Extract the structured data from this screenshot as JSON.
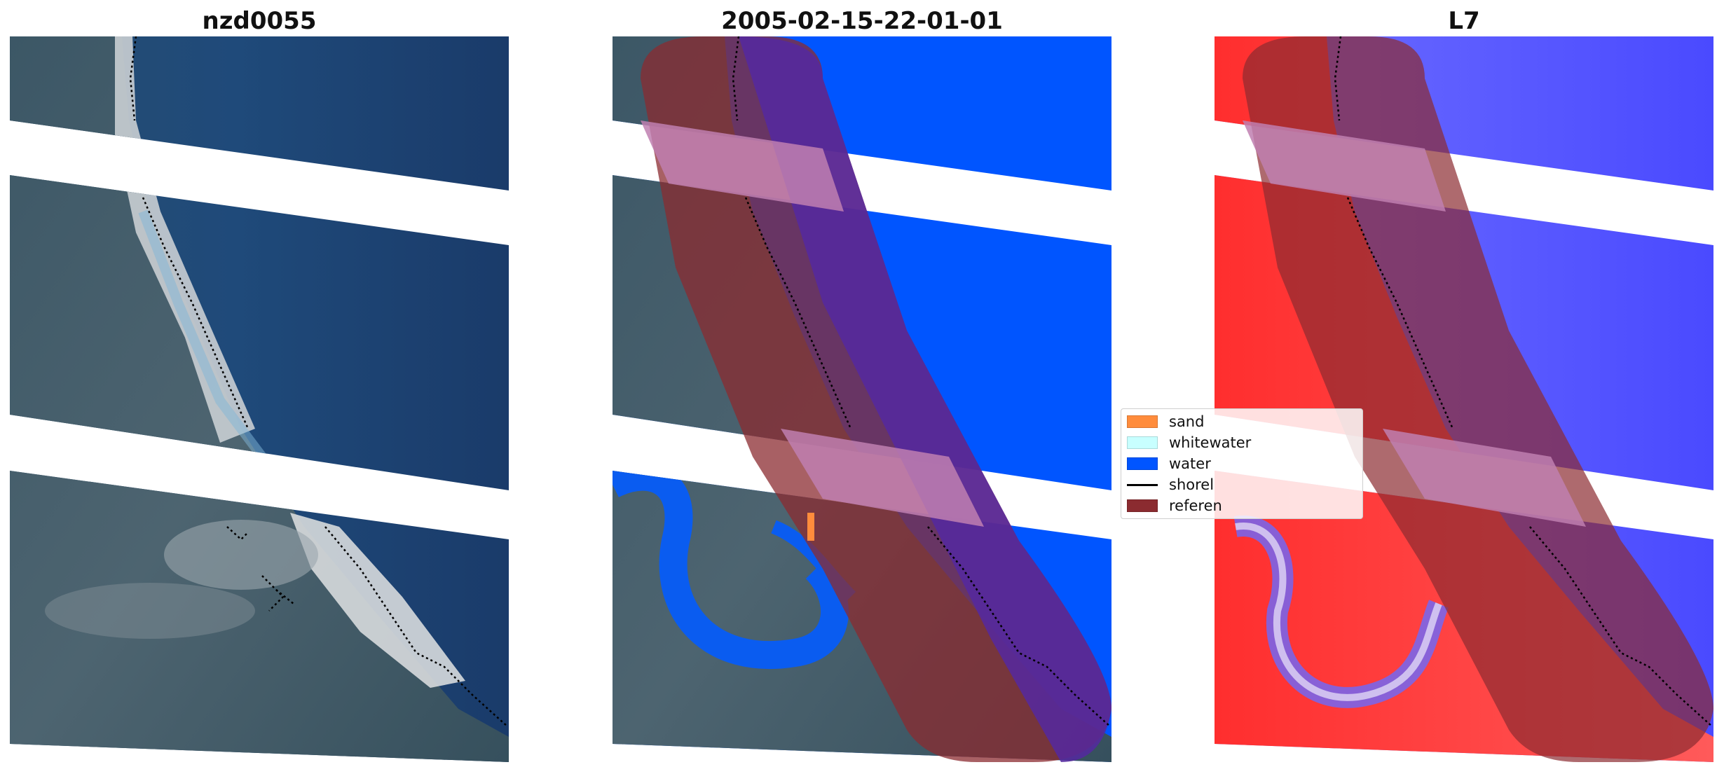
{
  "panels": [
    {
      "title": "nzd0055"
    },
    {
      "title": "2005-02-15-22-01-01"
    },
    {
      "title": "L7"
    }
  ],
  "legend": {
    "items": [
      {
        "label": "sand",
        "color": "#ff8c3c",
        "kind": "patch"
      },
      {
        "label": "whitewater",
        "color": "#c8ffff",
        "kind": "patch"
      },
      {
        "label": "water",
        "color": "#0055ff",
        "kind": "patch"
      },
      {
        "label": "shorel",
        "color": "#000000",
        "kind": "line"
      },
      {
        "label": "referen",
        "color": "#8b2b30",
        "kind": "patch"
      }
    ]
  },
  "colors": {
    "sea": "#1a3d6b",
    "water_class": "#0055ff",
    "reference_buffer": "#8b2b30",
    "index_positive": "#ff3b3b",
    "index_negative": "#5050ff"
  }
}
